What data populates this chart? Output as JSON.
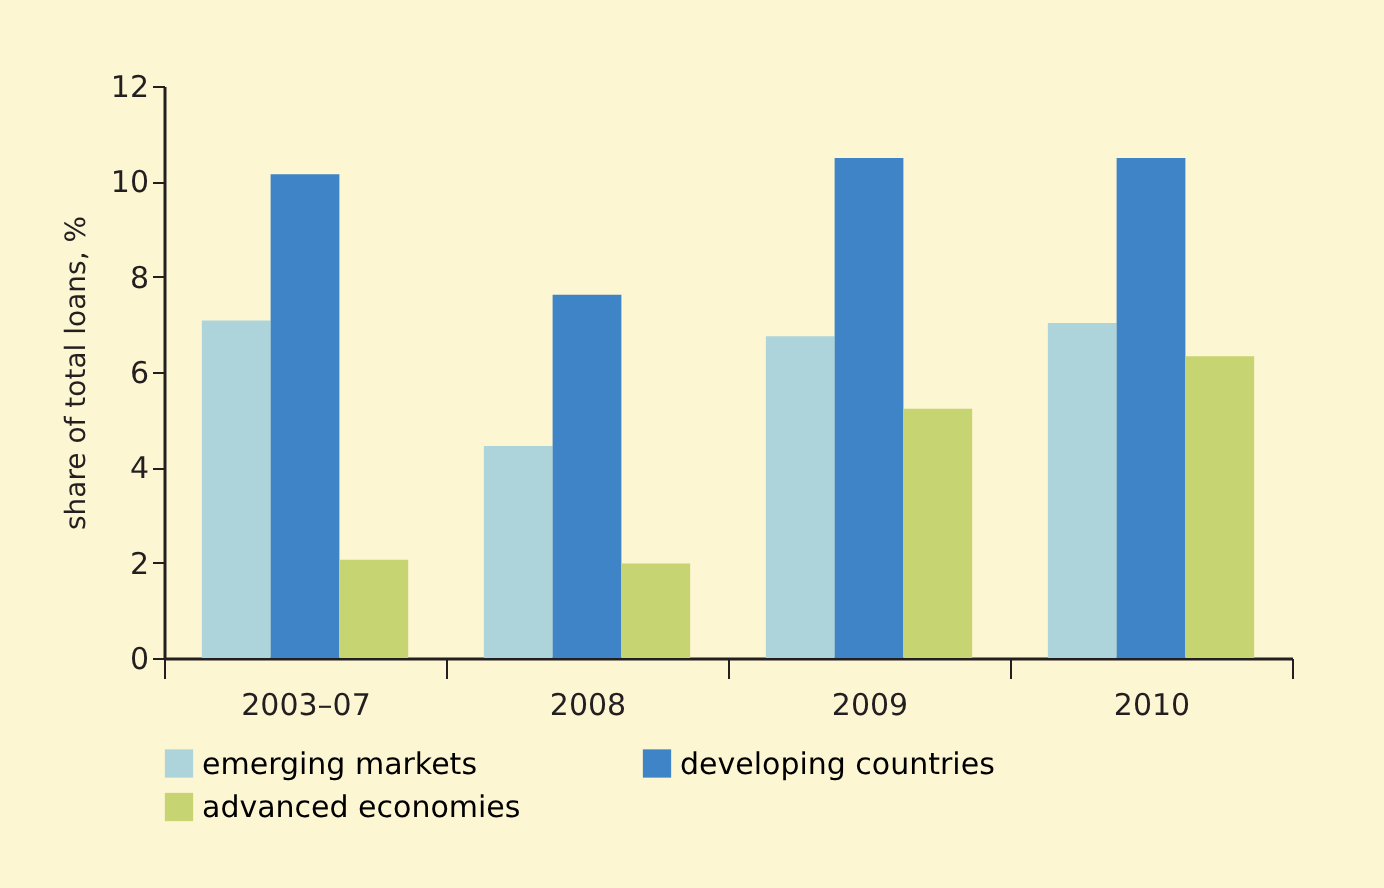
{
  "chart_data": {
    "type": "bar",
    "ylabel": "share of total loans, %",
    "categories": [
      "2003–07",
      "2008",
      "2009",
      "2010"
    ],
    "series": [
      {
        "name": "emerging markets",
        "color": "#aed4db",
        "values": [
          7.08,
          4.45,
          6.75,
          7.03
        ]
      },
      {
        "name": "developing countries",
        "color": "#3e84c6",
        "values": [
          10.15,
          7.62,
          10.49,
          10.49
        ]
      },
      {
        "name": "advanced economies",
        "color": "#c6d472",
        "values": [
          2.06,
          1.98,
          5.23,
          6.33
        ]
      }
    ],
    "ylim": [
      0,
      12
    ],
    "yticks": [
      0,
      2,
      4,
      6,
      8,
      10,
      12
    ],
    "grid": false,
    "legend": "bottom"
  }
}
